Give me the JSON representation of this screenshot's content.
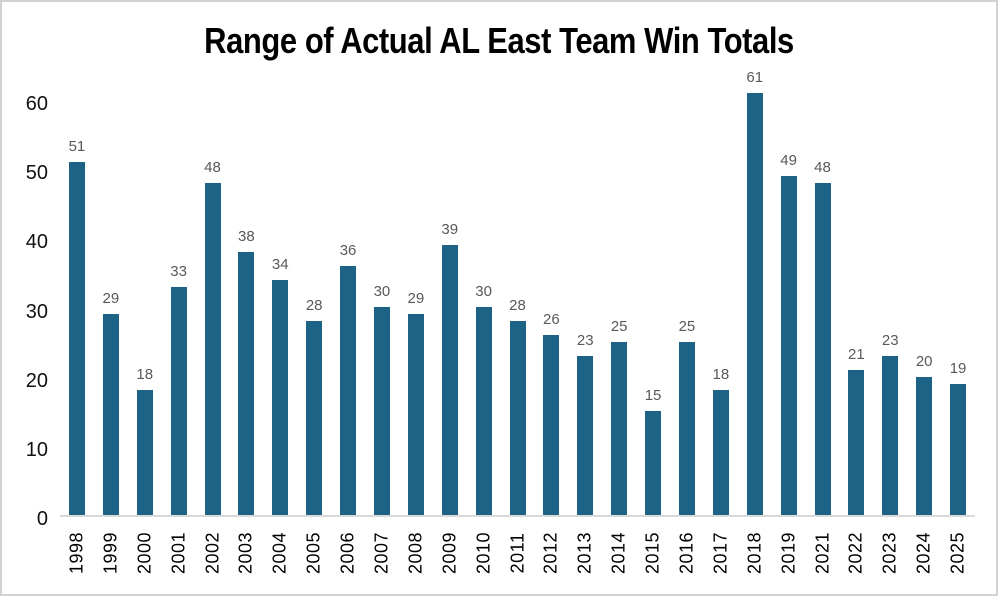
{
  "page": {
    "background_color": "#ffffff",
    "border_color": "#d2d2d2"
  },
  "chart_data": {
    "type": "bar",
    "title": "Range of Actual AL East Team Win Totals",
    "xlabel": "",
    "ylabel": "",
    "categories": [
      "1998",
      "1999",
      "2000",
      "2001",
      "2002",
      "2003",
      "2004",
      "2005",
      "2006",
      "2007",
      "2008",
      "2009",
      "2010",
      "2011",
      "2012",
      "2013",
      "2014",
      "2015",
      "2016",
      "2017",
      "2018",
      "2019",
      "2021",
      "2022",
      "2023",
      "2024",
      "2025"
    ],
    "values": [
      51,
      29,
      18,
      33,
      48,
      38,
      34,
      28,
      36,
      30,
      29,
      39,
      30,
      28,
      26,
      23,
      25,
      15,
      25,
      18,
      61,
      49,
      48,
      21,
      23,
      20,
      19
    ],
    "data_labels_shown": true,
    "y_ticks": [
      0,
      10,
      20,
      30,
      40,
      50,
      60
    ],
    "ylim": [
      0,
      65
    ],
    "grid": "off",
    "legend": "none",
    "bar_color": "#1c6386",
    "data_label_color": "#595959",
    "axis_text_color": "#111111",
    "axis_line_color": "#d9d9d9"
  }
}
